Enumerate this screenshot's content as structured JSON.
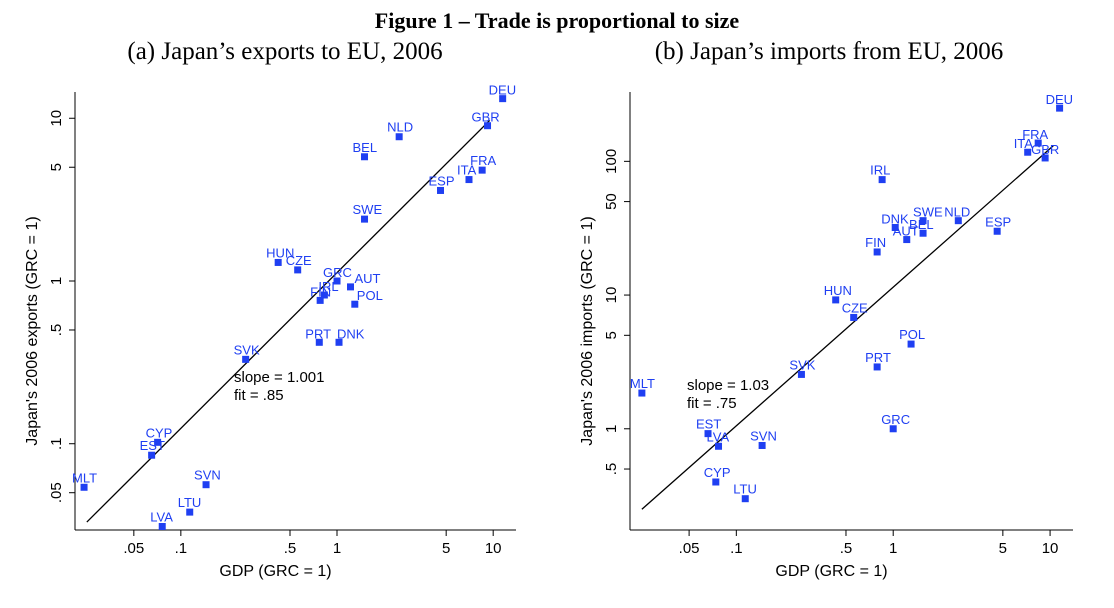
{
  "figure_title": "Figure 1 – Trade is proportional to size",
  "colors": {
    "marker": "#1f3ff2",
    "label": "#1f3ff2",
    "axis": "#000000",
    "fit_line": "#000000"
  },
  "chart_data": [
    {
      "type": "scatter",
      "title": "(a) Japan’s exports to EU, 2006",
      "xlabel": "GDP (GRC = 1)",
      "ylabel": "Japan's 2006 exports (GRC = 1)",
      "xscale": "log",
      "yscale": "log",
      "xlim": [
        0.021,
        14
      ],
      "ylim": [
        0.0295,
        14.5
      ],
      "xticks": [
        {
          "v": 0.05,
          "label": ".05"
        },
        {
          "v": 0.1,
          "label": ".1"
        },
        {
          "v": 0.5,
          "label": ".5"
        },
        {
          "v": 1,
          "label": "1"
        },
        {
          "v": 5,
          "label": "5"
        },
        {
          "v": 10,
          "label": "10"
        }
      ],
      "yticks": [
        {
          "v": 0.05,
          "label": ".05"
        },
        {
          "v": 0.1,
          "label": ".1"
        },
        {
          "v": 0.5,
          "label": ".5"
        },
        {
          "v": 1,
          "label": "1"
        },
        {
          "v": 5,
          "label": "5"
        },
        {
          "v": 10,
          "label": "10"
        }
      ],
      "annotation": [
        "slope = 1.001",
        "fit = .85"
      ],
      "fit_line": {
        "x": [
          0.025,
          9.5
        ],
        "y": [
          0.033,
          9.7
        ]
      },
      "points": [
        {
          "label": "DEU",
          "x": 11.5,
          "y": 13.2
        },
        {
          "label": "GBR",
          "x": 9.2,
          "y": 9.0
        },
        {
          "label": "NLD",
          "x": 2.5,
          "y": 7.7
        },
        {
          "label": "BEL",
          "x": 1.5,
          "y": 5.8
        },
        {
          "label": "FRA",
          "x": 8.5,
          "y": 4.8
        },
        {
          "label": "ITA",
          "x": 7.0,
          "y": 4.2
        },
        {
          "label": "ESP",
          "x": 4.6,
          "y": 3.6
        },
        {
          "label": "SWE",
          "x": 1.5,
          "y": 2.4
        },
        {
          "label": "HUN",
          "x": 0.42,
          "y": 1.3
        },
        {
          "label": "CZE",
          "x": 0.56,
          "y": 1.17
        },
        {
          "label": "GRC",
          "x": 1.0,
          "y": 1.0
        },
        {
          "label": "AUT",
          "x": 1.22,
          "y": 0.92
        },
        {
          "label": "IRL",
          "x": 0.83,
          "y": 0.82
        },
        {
          "label": "FIN",
          "x": 0.78,
          "y": 0.76
        },
        {
          "label": "POL",
          "x": 1.3,
          "y": 0.72
        },
        {
          "label": "PRT",
          "x": 0.77,
          "y": 0.42
        },
        {
          "label": "DNK",
          "x": 1.03,
          "y": 0.42
        },
        {
          "label": "SVK",
          "x": 0.26,
          "y": 0.33
        },
        {
          "label": "CYP",
          "x": 0.071,
          "y": 0.102
        },
        {
          "label": "EST",
          "x": 0.065,
          "y": 0.085
        },
        {
          "label": "MLT",
          "x": 0.024,
          "y": 0.054
        },
        {
          "label": "SVN",
          "x": 0.145,
          "y": 0.056
        },
        {
          "label": "LTU",
          "x": 0.114,
          "y": 0.038
        },
        {
          "label": "LVA",
          "x": 0.076,
          "y": 0.031
        }
      ]
    },
    {
      "type": "scatter",
      "title": "(b) Japan’s imports from EU, 2006",
      "xlabel": "GDP (GRC = 1)",
      "ylabel": "Japan's 2006 imports (GRC = 1)",
      "xscale": "log",
      "yscale": "log",
      "xlim": [
        0.021,
        14
      ],
      "ylim": [
        0.175,
        330
      ],
      "xticks": [
        {
          "v": 0.05,
          "label": ".05"
        },
        {
          "v": 0.1,
          "label": ".1"
        },
        {
          "v": 0.5,
          "label": ".5"
        },
        {
          "v": 1,
          "label": "1"
        },
        {
          "v": 5,
          "label": "5"
        },
        {
          "v": 10,
          "label": "10"
        }
      ],
      "yticks": [
        {
          "v": 0.5,
          "label": ".5"
        },
        {
          "v": 1,
          "label": "1"
        },
        {
          "v": 5,
          "label": "5"
        },
        {
          "v": 10,
          "label": "10"
        },
        {
          "v": 50,
          "label": "50"
        },
        {
          "v": 100,
          "label": "100"
        }
      ],
      "annotation": [
        "slope = 1.03",
        "fit = .75"
      ],
      "fit_line": {
        "x": [
          0.025,
          10.5
        ],
        "y": [
          0.25,
          131
        ]
      },
      "points": [
        {
          "label": "DEU",
          "x": 11.5,
          "y": 250
        },
        {
          "label": "FRA",
          "x": 8.4,
          "y": 137
        },
        {
          "label": "ITA",
          "x": 7.2,
          "y": 117
        },
        {
          "label": "GBR",
          "x": 9.3,
          "y": 106
        },
        {
          "label": "IRL",
          "x": 0.85,
          "y": 73
        },
        {
          "label": "SWE",
          "x": 1.55,
          "y": 36
        },
        {
          "label": "NLD",
          "x": 2.6,
          "y": 36
        },
        {
          "label": "DNK",
          "x": 1.03,
          "y": 32
        },
        {
          "label": "BEL",
          "x": 1.55,
          "y": 29
        },
        {
          "label": "AUT",
          "x": 1.22,
          "y": 26
        },
        {
          "label": "ESP",
          "x": 4.6,
          "y": 30
        },
        {
          "label": "FIN",
          "x": 0.79,
          "y": 21
        },
        {
          "label": "HUN",
          "x": 0.43,
          "y": 9.2
        },
        {
          "label": "CZE",
          "x": 0.56,
          "y": 6.8
        },
        {
          "label": "POL",
          "x": 1.3,
          "y": 4.3
        },
        {
          "label": "PRT",
          "x": 0.79,
          "y": 2.9
        },
        {
          "label": "SVK",
          "x": 0.26,
          "y": 2.55
        },
        {
          "label": "MLT",
          "x": 0.025,
          "y": 1.85
        },
        {
          "label": "GRC",
          "x": 1.0,
          "y": 1.0
        },
        {
          "label": "EST",
          "x": 0.066,
          "y": 0.92
        },
        {
          "label": "LVA",
          "x": 0.077,
          "y": 0.74
        },
        {
          "label": "SVN",
          "x": 0.146,
          "y": 0.75
        },
        {
          "label": "CYP",
          "x": 0.074,
          "y": 0.4
        },
        {
          "label": "LTU",
          "x": 0.114,
          "y": 0.3
        }
      ]
    }
  ]
}
